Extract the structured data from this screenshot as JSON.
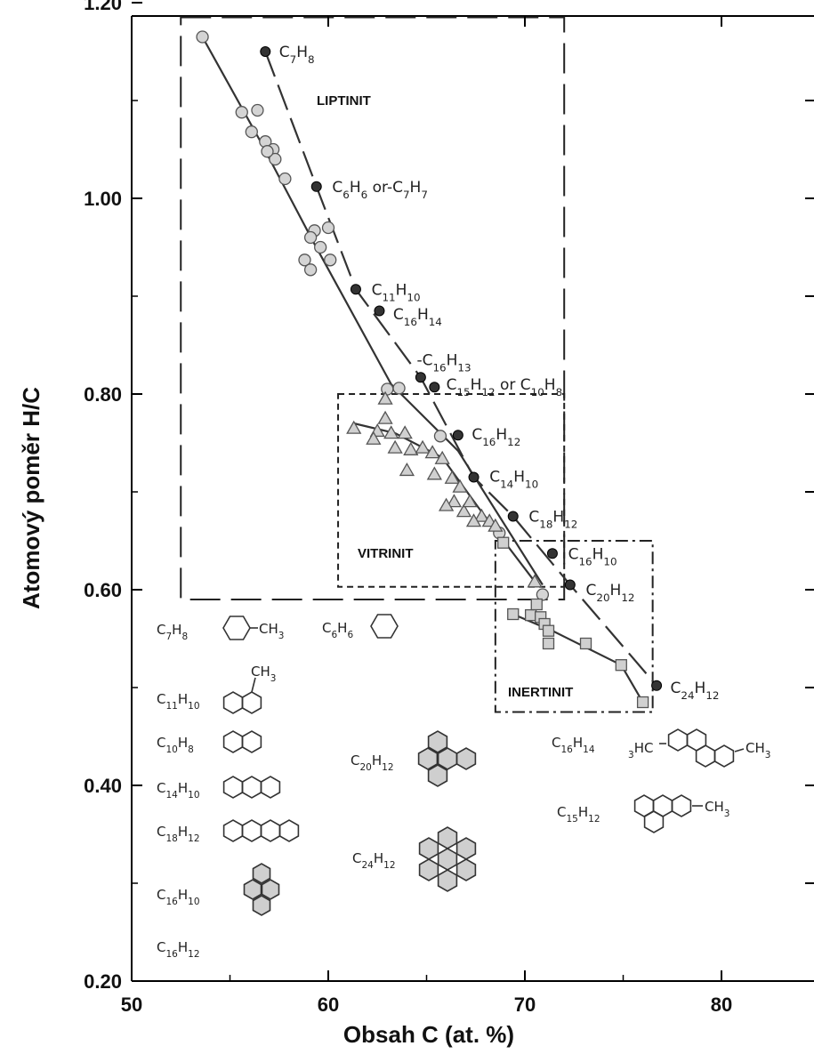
{
  "chart_data": {
    "type": "scatter",
    "xlabel": "Obsah C (at. %)",
    "ylabel": "Atomový poměr  H/C",
    "xlim": [
      50,
      84
    ],
    "ylim": [
      0.2,
      1.2
    ],
    "x_ticks": [
      "50",
      "60",
      "70",
      "80"
    ],
    "y_ticks": [
      "0.20",
      "0.40",
      "0.60",
      "0.80",
      "1.00",
      "1.20"
    ],
    "grid": false,
    "regions": [
      {
        "label": "LIPTINIT",
        "x": [
          52.5,
          72
        ],
        "y": [
          0.59,
          1.185
        ],
        "style": "long-dash"
      },
      {
        "label": "VITRINIT",
        "x": [
          60.5,
          72
        ],
        "y": [
          0.603,
          0.8
        ],
        "style": "short-dash"
      },
      {
        "label": "INERTINIT",
        "x": [
          68.5,
          76.5
        ],
        "y": [
          0.475,
          0.65
        ],
        "style": "dash-dot"
      }
    ],
    "series": [
      {
        "marker": "circle-gray",
        "points": [
          [
            53.6,
            1.165
          ],
          [
            55.6,
            1.088
          ],
          [
            56.4,
            1.09
          ],
          [
            56.1,
            1.068
          ],
          [
            56.8,
            1.058
          ],
          [
            57.2,
            1.05
          ],
          [
            57.3,
            1.04
          ],
          [
            57.8,
            1.02
          ],
          [
            56.9,
            1.048
          ],
          [
            59.3,
            0.967
          ],
          [
            59.6,
            0.95
          ],
          [
            59.1,
            0.96
          ],
          [
            60.0,
            0.97
          ],
          [
            60.1,
            0.937
          ],
          [
            58.8,
            0.937
          ],
          [
            59.1,
            0.927
          ],
          [
            63.0,
            0.805
          ],
          [
            63.6,
            0.806
          ],
          [
            65.7,
            0.757
          ],
          [
            68.7,
            0.658
          ],
          [
            70.9,
            0.595
          ]
        ]
      },
      {
        "marker": "triangle-gray",
        "points": [
          [
            61.3,
            0.765
          ],
          [
            62.5,
            0.762
          ],
          [
            62.9,
            0.775
          ],
          [
            63.2,
            0.76
          ],
          [
            62.3,
            0.754
          ],
          [
            63.4,
            0.745
          ],
          [
            63.9,
            0.76
          ],
          [
            64.2,
            0.743
          ],
          [
            64.8,
            0.745
          ],
          [
            65.3,
            0.74
          ],
          [
            65.8,
            0.734
          ],
          [
            64.0,
            0.722
          ],
          [
            65.4,
            0.718
          ],
          [
            66.3,
            0.714
          ],
          [
            66.7,
            0.705
          ],
          [
            66.4,
            0.69
          ],
          [
            66.9,
            0.68
          ],
          [
            67.2,
            0.69
          ],
          [
            67.8,
            0.675
          ],
          [
            68.2,
            0.67
          ],
          [
            66.0,
            0.686
          ],
          [
            67.4,
            0.67
          ],
          [
            68.5,
            0.665
          ],
          [
            62.9,
            0.795
          ],
          [
            70.5,
            0.608
          ]
        ]
      },
      {
        "marker": "square-gray",
        "points": [
          [
            69.4,
            0.575
          ],
          [
            70.3,
            0.574
          ],
          [
            70.8,
            0.572
          ],
          [
            71.0,
            0.565
          ],
          [
            71.2,
            0.558
          ],
          [
            70.6,
            0.585
          ],
          [
            71.2,
            0.545
          ],
          [
            73.1,
            0.545
          ],
          [
            74.9,
            0.523
          ],
          [
            76.0,
            0.485
          ],
          [
            68.9,
            0.648
          ]
        ]
      },
      {
        "marker": "circle-black",
        "points": [
          [
            56.8,
            1.15
          ],
          [
            59.4,
            1.012
          ],
          [
            61.4,
            0.907
          ],
          [
            62.6,
            0.885
          ],
          [
            64.7,
            0.817
          ],
          [
            65.4,
            0.807
          ],
          [
            66.6,
            0.758
          ],
          [
            67.4,
            0.715
          ],
          [
            69.4,
            0.675
          ],
          [
            71.4,
            0.637
          ],
          [
            72.3,
            0.605
          ],
          [
            76.7,
            0.502
          ]
        ]
      }
    ],
    "annotations": [
      {
        "formula": "C7H8",
        "x": 57.5,
        "y": 1.15
      },
      {
        "formula": "C6H6 or-C7H7",
        "x": 60.2,
        "y": 1.012
      },
      {
        "formula": "C11H10",
        "x": 62.2,
        "y": 0.907
      },
      {
        "formula": "C16H14",
        "x": 63.3,
        "y": 0.882
      },
      {
        "formula": "-C16H13",
        "x": 64.5,
        "y": 0.835
      },
      {
        "formula": "C15H12 or C10H8",
        "x": 66.0,
        "y": 0.81
      },
      {
        "formula": "C16H12",
        "x": 67.3,
        "y": 0.759
      },
      {
        "formula": "C14H10",
        "x": 68.2,
        "y": 0.716
      },
      {
        "formula": "C18H12",
        "x": 70.2,
        "y": 0.675
      },
      {
        "formula": "C16H10",
        "x": 72.2,
        "y": 0.637
      },
      {
        "formula": "C20H12",
        "x": 73.1,
        "y": 0.6
      },
      {
        "formula": "C24H12",
        "x": 77.4,
        "y": 0.5
      }
    ],
    "structure_key": [
      {
        "formula": "C7H8",
        "structure": "toluene"
      },
      {
        "formula": "C6H6",
        "structure": "benzene"
      },
      {
        "formula": "C11H10",
        "structure": "methylnaphthalene"
      },
      {
        "formula": "C10H8",
        "structure": "naphthalene"
      },
      {
        "formula": "C14H10",
        "structure": "anthracene"
      },
      {
        "formula": "C18H12",
        "structure": "tetracene"
      },
      {
        "formula": "C16H10",
        "structure": "pyrene"
      },
      {
        "formula": "C16H12",
        "structure": "none"
      },
      {
        "formula": "C20H12",
        "structure": "benzopyrene"
      },
      {
        "formula": "C24H12",
        "structure": "coronene"
      },
      {
        "formula": "C16H14",
        "structure": "dimethylphenanthrene"
      },
      {
        "formula": "C15H12",
        "structure": "methylphenanthrene"
      }
    ]
  }
}
